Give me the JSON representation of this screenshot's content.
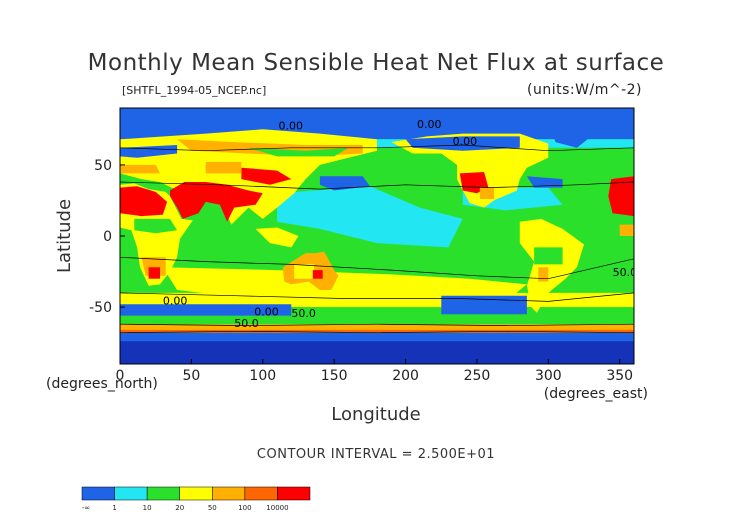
{
  "chart_data": {
    "type": "heatmap",
    "title": "Monthly Mean Sensible Heat Net Flux at surface",
    "subtitle": "[SHTFL_1994-05_NCEP.nc]",
    "units_label": "(units:W/m^-2)",
    "xlabel": "Longitude",
    "ylabel": "Latitude",
    "x_unit_label": "(degrees_east)",
    "y_unit_label": "(degrees_north)",
    "xlim": [
      0,
      360
    ],
    "ylim": [
      -90,
      90
    ],
    "x_ticks": [
      0,
      50,
      100,
      150,
      200,
      250,
      300,
      350
    ],
    "y_ticks": [
      -50,
      0,
      50
    ],
    "contour_interval_text": "CONTOUR INTERVAL = 2.500E+01",
    "contour_labels": [
      "0.00",
      "0.00",
      "0.00",
      "0.00",
      "0.00",
      "50.0",
      "50.0",
      "50.0"
    ],
    "colorbar": {
      "colors": [
        "#1f63e6",
        "#22e6f2",
        "#2be02b",
        "#ffff00",
        "#ffb000",
        "#ff6600",
        "#ff0000"
      ],
      "boundaries": [
        "-∞",
        "1",
        "10",
        "20",
        "50",
        "100",
        "10000"
      ]
    },
    "grid": false
  },
  "palette": {
    "blue": "#1f63e6",
    "cyan": "#22e6f2",
    "green": "#2be02b",
    "yellow": "#ffff00",
    "orange": "#ffb000",
    "dark_orange": "#ff6600",
    "red": "#ff0000",
    "navy": "#1433b8"
  }
}
